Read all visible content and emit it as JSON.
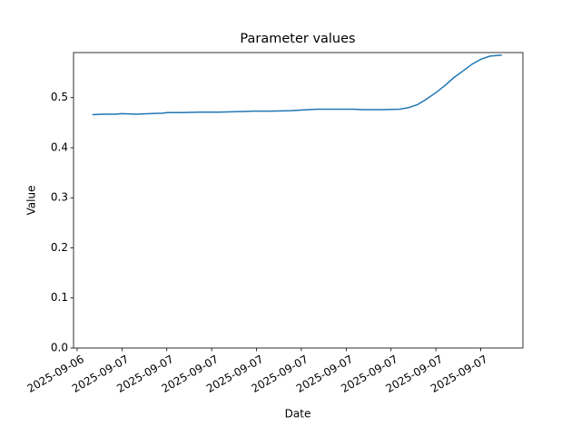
{
  "chart_data": {
    "type": "line",
    "title": "Parameter values",
    "x_label": "Date",
    "y_label": "Value",
    "x": [
      0.34,
      0.61,
      0.87,
      0.99,
      1.32,
      1.62,
      1.92,
      2.0,
      2.33,
      2.73,
      3.14,
      3.54,
      3.95,
      4.35,
      4.76,
      5.16,
      5.36,
      5.77,
      6.17,
      6.38,
      6.78,
      7.19,
      7.39,
      7.59,
      7.79,
      8.0,
      8.2,
      8.4,
      8.6,
      8.81,
      9.01,
      9.21,
      9.47
    ],
    "series": [
      {
        "color": "#1f77b4",
        "values": [
          0.466,
          0.467,
          0.467,
          0.468,
          0.467,
          0.468,
          0.469,
          0.47,
          0.47,
          0.471,
          0.471,
          0.472,
          0.473,
          0.473,
          0.474,
          0.476,
          0.477,
          0.477,
          0.477,
          0.476,
          0.476,
          0.477,
          0.48,
          0.486,
          0.497,
          0.51,
          0.524,
          0.54,
          0.553,
          0.567,
          0.577,
          0.583,
          0.585
        ]
      }
    ],
    "xlim": [
      -0.08,
      9.94
    ],
    "xticks": [
      {
        "value": 0,
        "label": "2025-09-06"
      },
      {
        "value": 1,
        "label": "2025-09-07"
      },
      {
        "value": 2,
        "label": "2025-09-07"
      },
      {
        "value": 3,
        "label": "2025-09-07"
      },
      {
        "value": 4,
        "label": "2025-09-07"
      },
      {
        "value": 5,
        "label": "2025-09-07"
      },
      {
        "value": 6,
        "label": "2025-09-07"
      },
      {
        "value": 7,
        "label": "2025-09-07"
      },
      {
        "value": 8,
        "label": "2025-09-07"
      },
      {
        "value": 9,
        "label": "2025-09-07"
      }
    ],
    "ylim": [
      0,
      0.59
    ],
    "yticks": [
      {
        "value": 0,
        "label": "0.0"
      },
      0.1,
      0.2,
      0.3,
      0.4,
      0.5
    ]
  }
}
